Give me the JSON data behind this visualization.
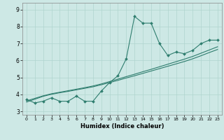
{
  "xlabel": "Humidex (Indice chaleur)",
  "x": [
    0,
    1,
    2,
    3,
    4,
    5,
    6,
    7,
    8,
    9,
    10,
    11,
    12,
    13,
    14,
    15,
    16,
    17,
    18,
    19,
    20,
    21,
    22,
    23
  ],
  "y_main": [
    3.7,
    3.5,
    3.6,
    3.8,
    3.6,
    3.6,
    3.9,
    3.6,
    3.6,
    4.2,
    4.7,
    5.1,
    6.1,
    8.6,
    8.2,
    8.2,
    7.0,
    6.3,
    6.5,
    6.4,
    6.6,
    7.0,
    7.2,
    7.2
  ],
  "y_trend1": [
    3.55,
    3.72,
    3.89,
    4.01,
    4.1,
    4.18,
    4.27,
    4.36,
    4.45,
    4.57,
    4.7,
    4.83,
    4.97,
    5.1,
    5.24,
    5.38,
    5.52,
    5.66,
    5.8,
    5.94,
    6.1,
    6.28,
    6.47,
    6.65
  ],
  "y_trend2": [
    3.62,
    3.77,
    3.92,
    4.04,
    4.13,
    4.22,
    4.31,
    4.4,
    4.5,
    4.62,
    4.76,
    4.9,
    5.05,
    5.19,
    5.34,
    5.48,
    5.63,
    5.78,
    5.93,
    6.08,
    6.24,
    6.43,
    6.62,
    6.81
  ],
  "line_color": "#2e7d6e",
  "bg_color": "#cde8e5",
  "grid_color": "#afd4cf",
  "ylim": [
    2.8,
    9.4
  ],
  "xlim": [
    -0.5,
    23.5
  ],
  "yticks": [
    3,
    4,
    5,
    6,
    7,
    8,
    9
  ],
  "xticks": [
    0,
    1,
    2,
    3,
    4,
    5,
    6,
    7,
    8,
    9,
    10,
    11,
    12,
    13,
    14,
    15,
    16,
    17,
    18,
    19,
    20,
    21,
    22,
    23
  ]
}
